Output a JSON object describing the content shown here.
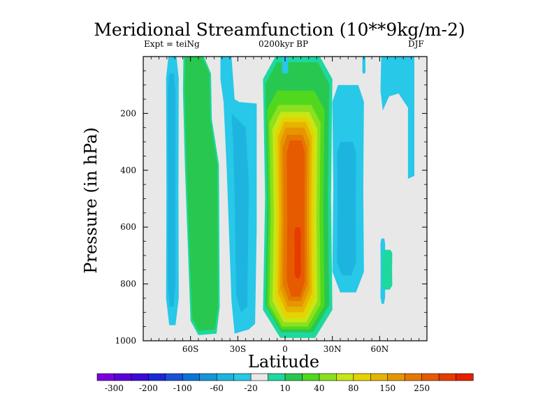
{
  "chart_data": {
    "type": "contour",
    "title": "Meridional Streamfunction (10**9kg/m-2)",
    "subtitle_left": "Expt = teiNg",
    "subtitle_center": "0200kyr BP",
    "subtitle_right": "DJF",
    "xlabel": "Latitude",
    "ylabel": "Pressure (in hPa)",
    "xlim": [
      -90,
      90
    ],
    "ylim": [
      1000,
      0
    ],
    "x_ticks": [
      {
        "value": -60,
        "label": "60S"
      },
      {
        "value": -30,
        "label": "30S"
      },
      {
        "value": 0,
        "label": "0"
      },
      {
        "value": 30,
        "label": "30N"
      },
      {
        "value": 60,
        "label": "60N"
      }
    ],
    "y_ticks": [
      {
        "value": 200,
        "label": "200"
      },
      {
        "value": 400,
        "label": "400"
      },
      {
        "value": 600,
        "label": "600"
      },
      {
        "value": 800,
        "label": "800"
      },
      {
        "value": 1000,
        "label": "1000"
      }
    ],
    "colorbar": {
      "labels": [
        "-300",
        "-200",
        "-100",
        "-60",
        "-20",
        "10",
        "40",
        "80",
        "150",
        "250"
      ],
      "colors": [
        "#7a00e0",
        "#5a00d8",
        "#3a0ad8",
        "#1a28d8",
        "#1a50d8",
        "#0a74d8",
        "#1496d8",
        "#1eb4e0",
        "#28c8e8",
        "#e8e8e8",
        "#1ed8a0",
        "#28c850",
        "#50d81e",
        "#8ce01e",
        "#c8e614",
        "#e6d200",
        "#e6b400",
        "#e69600",
        "#e67800",
        "#e65a00",
        "#e63c00",
        "#e61e00"
      ]
    },
    "colors": {
      "background": "#e8e8e8",
      "neg_weak": "#28c8e8",
      "neg_mid": "#1eb4e0",
      "neg_strong": "#1496d8",
      "pos_weak": "#1ed8a0",
      "pos_1": "#28c850",
      "pos_2": "#50d81e",
      "pos_3": "#8ce01e",
      "pos_4": "#c8e614",
      "pos_5": "#e6d200",
      "pos_6": "#e6b400",
      "pos_7": "#e69600",
      "pos_8": "#e67800",
      "pos_9": "#e65a00",
      "pos_10": "#e63c00",
      "pos_11": "#e61e00"
    },
    "features": [
      {
        "name": "sh-polar-negative-cell",
        "lat_range": [
          -75,
          -68
        ],
        "p_range": [
          0,
          940
        ],
        "peak": "-20"
      },
      {
        "name": "sh-midlat-positive-band",
        "lat_range": [
          -64,
          -42
        ],
        "p_range": [
          0,
          970
        ],
        "peak": "40"
      },
      {
        "name": "sh-subtropical-negative-cell",
        "lat_range": [
          -42,
          -18
        ],
        "p_range": [
          0,
          970
        ],
        "peak": "-60"
      },
      {
        "name": "hadley-positive-cell",
        "lat_range": [
          -14,
          30
        ],
        "p_range": [
          0,
          990
        ],
        "peak": "250"
      },
      {
        "name": "nh-subtropical-negative-cell",
        "lat_range": [
          30,
          50
        ],
        "p_range": [
          100,
          830
        ],
        "peak": "-60"
      },
      {
        "name": "nh-highlat-negative-cell",
        "lat_range": [
          60,
          82
        ],
        "p_range": [
          0,
          420
        ],
        "peak": "-20"
      },
      {
        "name": "nh-highlat-positive-patch",
        "lat_range": [
          61,
          68
        ],
        "p_range": [
          680,
          820
        ],
        "peak": "10"
      }
    ]
  }
}
